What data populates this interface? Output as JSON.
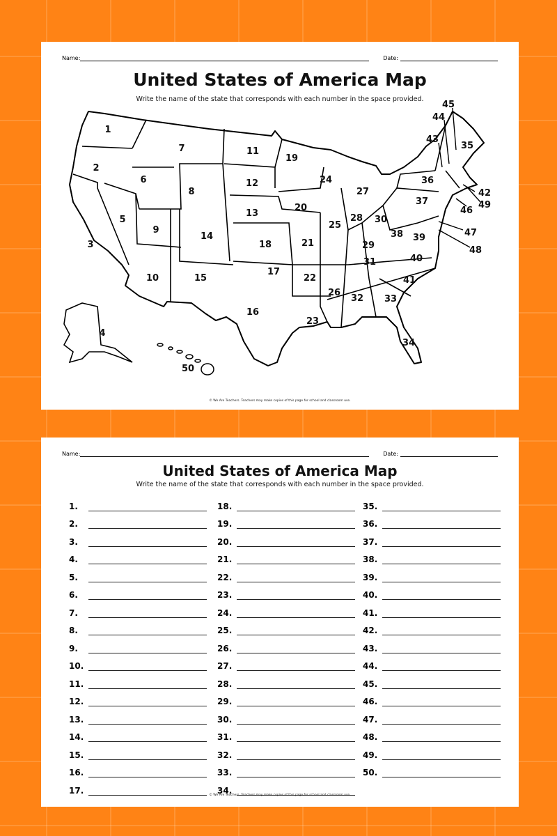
{
  "worksheet_map": {
    "name_label": "Name:",
    "date_label": "Date:",
    "title": "United States of America Map",
    "instructions": "Write the name of the state that corresponds with each number in the space provided.",
    "footer": "© We Are Teachers. Teachers may make copies of this page for school and classroom use.",
    "state_numbers": [
      "1",
      "2",
      "3",
      "4",
      "5",
      "6",
      "7",
      "8",
      "9",
      "10",
      "11",
      "12",
      "13",
      "14",
      "15",
      "16",
      "17",
      "18",
      "19",
      "20",
      "21",
      "22",
      "23",
      "24",
      "25",
      "26",
      "27",
      "28",
      "29",
      "30",
      "31",
      "32",
      "33",
      "34",
      "35",
      "36",
      "37",
      "38",
      "39",
      "40",
      "41",
      "42",
      "43",
      "44",
      "45",
      "46",
      "47",
      "48",
      "49",
      "50"
    ]
  },
  "worksheet_answers": {
    "name_label": "Name:",
    "date_label": "Date:",
    "title": "United States of America Map",
    "instructions": "Write the name of the state that corresponds with each number in the space provided.",
    "footer": "© We Are Teachers. Teachers may make copies of this page for school and classroom use.",
    "columns": [
      [
        "1.",
        "2.",
        "3.",
        "4.",
        "5.",
        "6.",
        "7.",
        "8.",
        "9.",
        "10.",
        "11.",
        "12.",
        "13.",
        "14.",
        "15.",
        "16.",
        "17."
      ],
      [
        "18.",
        "19.",
        "20.",
        "21.",
        "22.",
        "23.",
        "24.",
        "25.",
        "26.",
        "27.",
        "28.",
        "29.",
        "30.",
        "31.",
        "32.",
        "33.",
        "34."
      ],
      [
        "35.",
        "36.",
        "37.",
        "38.",
        "39.",
        "40.",
        "41.",
        "42.",
        "43.",
        "44.",
        "45.",
        "46.",
        "47.",
        "48.",
        "49.",
        "50."
      ]
    ]
  },
  "colors": {
    "background": "#ff8315",
    "sheet": "#ffffff",
    "ink": "#111111"
  }
}
